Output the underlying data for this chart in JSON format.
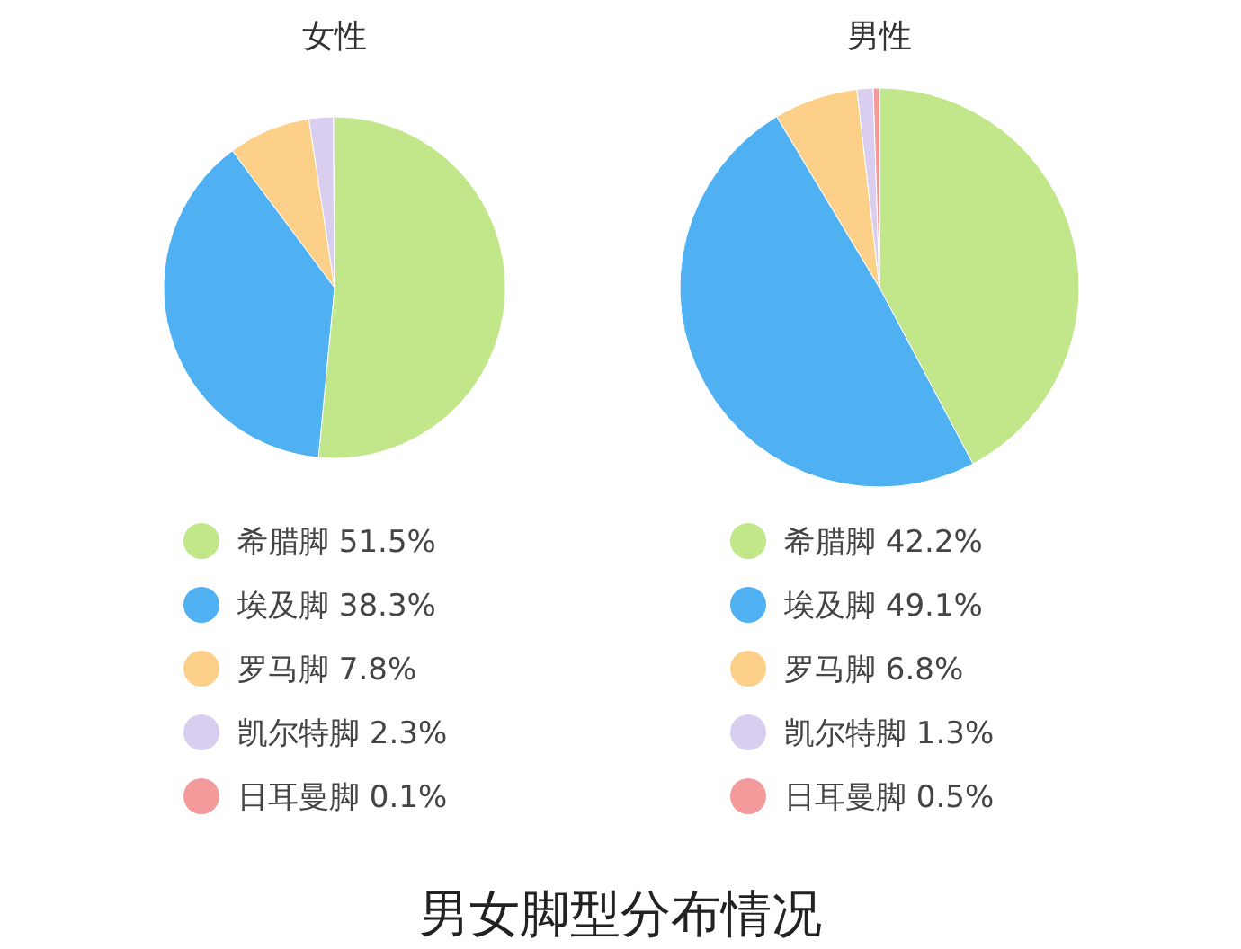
{
  "chart_data": [
    {
      "type": "pie",
      "title": "女性",
      "categories": [
        "希腊脚",
        "埃及脚",
        "罗马脚",
        "凯尔特脚",
        "日耳曼脚"
      ],
      "values": [
        51.5,
        38.3,
        7.8,
        2.3,
        0.1
      ],
      "colors": [
        "#c2e68a",
        "#4fb0f2",
        "#fdd08a",
        "#d9cdf0",
        "#f59a9a"
      ],
      "value_labels": [
        "51.5%",
        "38.3%",
        "7.8%",
        "2.3%",
        "0.1%"
      ],
      "legend": "bottom",
      "annotations": [
        "男女脚型分布情况"
      ]
    },
    {
      "type": "pie",
      "title": "男性",
      "categories": [
        "希腊脚",
        "埃及脚",
        "罗马脚",
        "凯尔特脚",
        "日耳曼脚"
      ],
      "values": [
        42.2,
        49.1,
        6.8,
        1.3,
        0.5
      ],
      "colors": [
        "#c2e68a",
        "#4fb0f2",
        "#fdd08a",
        "#d9cdf0",
        "#f59a9a"
      ],
      "value_labels": [
        "42.2%",
        "49.1%",
        "6.8%",
        "1.3%",
        "0.5%"
      ],
      "legend": "bottom"
    }
  ]
}
